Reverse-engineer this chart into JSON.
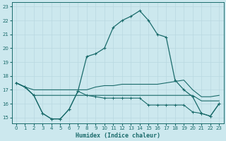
{
  "xlabel": "Humidex (Indice chaleur)",
  "bg_color": "#cce8ee",
  "grid_color": "#b8d8e0",
  "line_color": "#1a6b6b",
  "xlim": [
    -0.5,
    23.5
  ],
  "ylim": [
    14.6,
    23.3
  ],
  "yticks": [
    15,
    16,
    17,
    18,
    19,
    20,
    21,
    22,
    23
  ],
  "xticks": [
    0,
    1,
    2,
    3,
    4,
    5,
    6,
    7,
    8,
    9,
    10,
    11,
    12,
    13,
    14,
    15,
    16,
    17,
    18,
    19,
    20,
    21,
    22,
    23
  ],
  "line_main_x": [
    0,
    1,
    2,
    3,
    4,
    5,
    6,
    7,
    8,
    9,
    10,
    11,
    12,
    13,
    14,
    15,
    16,
    17,
    18,
    19,
    20,
    21,
    22,
    23
  ],
  "line_main_y": [
    17.5,
    17.2,
    16.6,
    15.3,
    14.9,
    14.9,
    15.6,
    16.9,
    19.4,
    19.6,
    20.0,
    21.5,
    22.0,
    22.3,
    22.7,
    22.0,
    21.0,
    20.8,
    17.7,
    17.0,
    16.5,
    15.3,
    15.1,
    16.0
  ],
  "line_upper_x": [
    0,
    1,
    2,
    3,
    4,
    5,
    6,
    7,
    8,
    9,
    10,
    11,
    12,
    13,
    14,
    15,
    16,
    17,
    18,
    19,
    20,
    21,
    22,
    23
  ],
  "line_upper_y": [
    17.5,
    17.2,
    17.0,
    17.0,
    17.0,
    17.0,
    17.0,
    17.0,
    17.0,
    17.2,
    17.3,
    17.3,
    17.4,
    17.4,
    17.4,
    17.4,
    17.4,
    17.5,
    17.6,
    17.7,
    17.0,
    16.5,
    16.5,
    16.6
  ],
  "line_mid_x": [
    0,
    1,
    2,
    3,
    4,
    5,
    6,
    7,
    8,
    9,
    10,
    11,
    12,
    13,
    14,
    15,
    16,
    17,
    18,
    19,
    20,
    21,
    22,
    23
  ],
  "line_mid_y": [
    17.5,
    17.2,
    16.6,
    16.6,
    16.6,
    16.6,
    16.6,
    16.6,
    16.6,
    16.6,
    16.6,
    16.6,
    16.6,
    16.6,
    16.6,
    16.6,
    16.6,
    16.6,
    16.6,
    16.6,
    16.6,
    16.2,
    16.2,
    16.2
  ],
  "line_low_x": [
    0,
    1,
    2,
    3,
    4,
    5,
    6,
    7,
    8,
    9,
    10,
    11,
    12,
    13,
    14,
    15,
    16,
    17,
    18,
    19,
    20,
    21,
    22,
    23
  ],
  "line_low_y": [
    17.5,
    17.2,
    16.6,
    15.3,
    14.9,
    14.9,
    15.6,
    16.9,
    16.6,
    16.5,
    16.4,
    16.4,
    16.4,
    16.4,
    16.4,
    15.9,
    15.9,
    15.9,
    15.9,
    15.9,
    15.4,
    15.3,
    15.1,
    16.0
  ]
}
